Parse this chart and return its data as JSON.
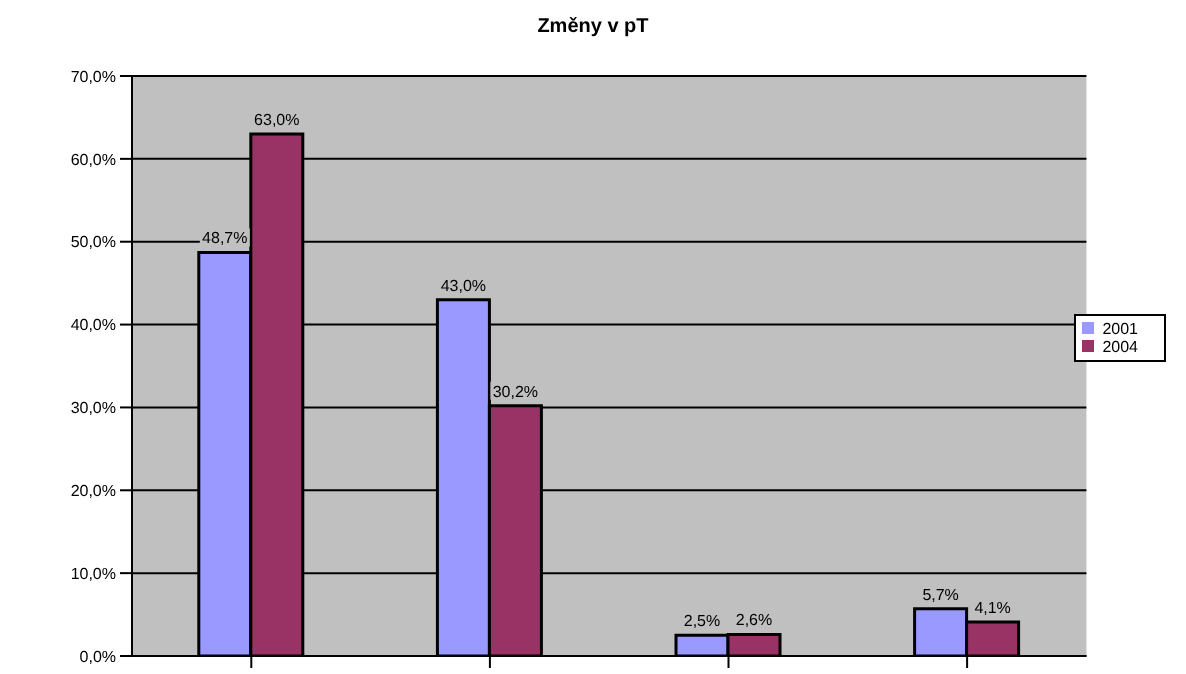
{
  "chart_data": {
    "type": "bar",
    "title": "Změny v pT",
    "categories": [
      null,
      null,
      null,
      null
    ],
    "series": [
      {
        "name": "2001",
        "color": "#9999ff",
        "values": [
          48.7,
          43.0,
          2.5,
          5.7
        ],
        "value_labels": [
          "48,7%",
          "43,0%",
          "2,5%",
          "5,7%"
        ]
      },
      {
        "name": "2004",
        "color": "#993366",
        "values": [
          63.0,
          30.2,
          2.6,
          4.1
        ],
        "value_labels": [
          "63,0%",
          "30,2%",
          "2,6%",
          "4,1%"
        ]
      }
    ],
    "ylim": [
      0,
      70
    ],
    "yticks": [
      {
        "value": 0,
        "label": "0,0%"
      },
      {
        "value": 10,
        "label": "10,0%"
      },
      {
        "value": 20,
        "label": "20,0%"
      },
      {
        "value": 30,
        "label": "30,0%"
      },
      {
        "value": 40,
        "label": "40,0%"
      },
      {
        "value": 50,
        "label": "50,0%"
      },
      {
        "value": 60,
        "label": "60,0%"
      },
      {
        "value": 70,
        "label": "70,0%"
      }
    ],
    "grid": "y",
    "legend": "right"
  }
}
